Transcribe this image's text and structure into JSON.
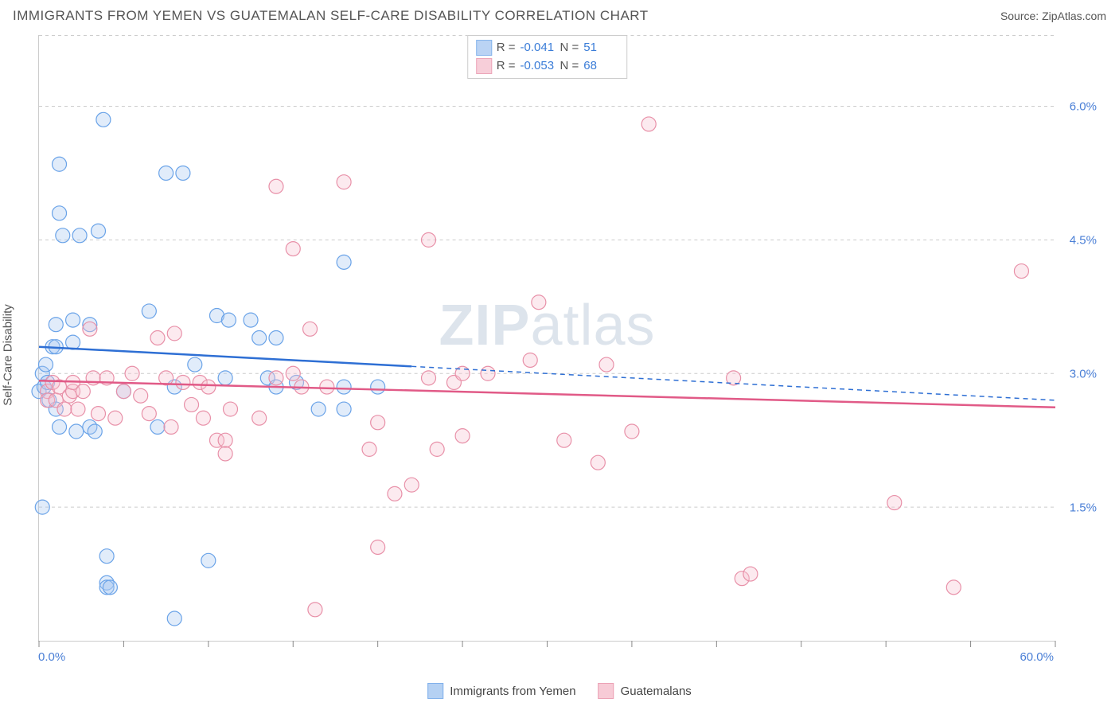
{
  "title": "IMMIGRANTS FROM YEMEN VS GUATEMALAN SELF-CARE DISABILITY CORRELATION CHART",
  "source_label": "Source: ",
  "source_value": "ZipAtlas.com",
  "watermark": {
    "bold": "ZIP",
    "light": "atlas"
  },
  "chart": {
    "type": "scatter",
    "background_color": "#ffffff",
    "grid_color": "#cccccc",
    "axis_color": "#cccccc",
    "tick_color": "#888888",
    "label_color": "#4a7fd6",
    "y_axis_title": "Self-Care Disability",
    "xlim": [
      0,
      60
    ],
    "ylim": [
      0,
      6.8
    ],
    "x_end_labels": [
      {
        "value": 0,
        "text": "0.0%"
      },
      {
        "value": 60,
        "text": "60.0%"
      }
    ],
    "x_tick_positions": [
      0,
      5,
      10,
      15,
      20,
      25,
      30,
      35,
      40,
      45,
      50,
      55,
      60
    ],
    "y_tick_labels": [
      {
        "value": 1.5,
        "text": "1.5%"
      },
      {
        "value": 3.0,
        "text": "3.0%"
      },
      {
        "value": 4.5,
        "text": "4.5%"
      },
      {
        "value": 6.0,
        "text": "6.0%"
      }
    ],
    "marker_radius": 9,
    "marker_fill_opacity": 0.35,
    "marker_stroke_width": 1.2,
    "trend_line_width": 2.5,
    "series": [
      {
        "name": "Immigrants from Yemen",
        "stroke": "#6aa3e8",
        "fill": "#a9c9f2",
        "line_color": "#2e6fd4",
        "R": "-0.041",
        "N": "51",
        "trend": {
          "x1": 0,
          "y1": 3.3,
          "x_solid_end": 22,
          "y_solid_end": 3.08,
          "x2": 60,
          "y2": 2.7
        },
        "points": [
          [
            0,
            2.8
          ],
          [
            0.2,
            3.0
          ],
          [
            0.3,
            2.85
          ],
          [
            0.5,
            2.9
          ],
          [
            0.4,
            3.1
          ],
          [
            0.6,
            2.7
          ],
          [
            0.8,
            3.3
          ],
          [
            0.2,
            1.5
          ],
          [
            1,
            3.3
          ],
          [
            1,
            2.6
          ],
          [
            1,
            3.55
          ],
          [
            1.2,
            2.4
          ],
          [
            1.2,
            4.8
          ],
          [
            1.4,
            4.55
          ],
          [
            1.2,
            5.35
          ],
          [
            2,
            3.6
          ],
          [
            2,
            3.35
          ],
          [
            2.2,
            2.35
          ],
          [
            2.4,
            4.55
          ],
          [
            3,
            3.55
          ],
          [
            3,
            2.4
          ],
          [
            3.3,
            2.35
          ],
          [
            3.5,
            4.6
          ],
          [
            3.8,
            5.85
          ],
          [
            4,
            0.95
          ],
          [
            4,
            0.65
          ],
          [
            4,
            0.6
          ],
          [
            4.2,
            0.6
          ],
          [
            5,
            2.8
          ],
          [
            6.5,
            3.7
          ],
          [
            7,
            2.4
          ],
          [
            7.5,
            5.25
          ],
          [
            8,
            0.25
          ],
          [
            8,
            2.85
          ],
          [
            8.5,
            5.25
          ],
          [
            9.2,
            3.1
          ],
          [
            10,
            0.9
          ],
          [
            10.5,
            3.65
          ],
          [
            11,
            2.95
          ],
          [
            11.2,
            3.6
          ],
          [
            12.5,
            3.6
          ],
          [
            13,
            3.4
          ],
          [
            13.5,
            2.95
          ],
          [
            14,
            3.4
          ],
          [
            14,
            2.85
          ],
          [
            15.2,
            2.9
          ],
          [
            16.5,
            2.6
          ],
          [
            18,
            4.25
          ],
          [
            18,
            2.85
          ],
          [
            18,
            2.6
          ],
          [
            20,
            2.85
          ]
        ]
      },
      {
        "name": "Guatemalans",
        "stroke": "#e890a8",
        "fill": "#f6c2d0",
        "line_color": "#e15a87",
        "R": "-0.053",
        "N": "68",
        "trend": {
          "x1": 0,
          "y1": 2.92,
          "x_solid_end": 60,
          "y_solid_end": 2.62,
          "x2": 60,
          "y2": 2.62
        },
        "points": [
          [
            0.5,
            2.8
          ],
          [
            0.5,
            2.7
          ],
          [
            0.8,
            2.9
          ],
          [
            1,
            2.7
          ],
          [
            1.2,
            2.85
          ],
          [
            1.5,
            2.6
          ],
          [
            1.8,
            2.75
          ],
          [
            2,
            2.8
          ],
          [
            2,
            2.9
          ],
          [
            2.3,
            2.6
          ],
          [
            2.6,
            2.8
          ],
          [
            3,
            3.5
          ],
          [
            3.2,
            2.95
          ],
          [
            3.5,
            2.55
          ],
          [
            4,
            2.95
          ],
          [
            4.5,
            2.5
          ],
          [
            5,
            2.8
          ],
          [
            5.5,
            3.0
          ],
          [
            6,
            2.75
          ],
          [
            6.5,
            2.55
          ],
          [
            7,
            3.4
          ],
          [
            7.5,
            2.95
          ],
          [
            7.8,
            2.4
          ],
          [
            8,
            3.45
          ],
          [
            8.5,
            2.9
          ],
          [
            9,
            2.65
          ],
          [
            9.5,
            2.9
          ],
          [
            9.7,
            2.5
          ],
          [
            10,
            2.85
          ],
          [
            10.5,
            2.25
          ],
          [
            11,
            2.25
          ],
          [
            11,
            2.1
          ],
          [
            11.3,
            2.6
          ],
          [
            13,
            2.5
          ],
          [
            14,
            5.1
          ],
          [
            14,
            2.95
          ],
          [
            15,
            3.0
          ],
          [
            15,
            4.4
          ],
          [
            15.5,
            2.85
          ],
          [
            16,
            3.5
          ],
          [
            16.3,
            0.35
          ],
          [
            17,
            2.85
          ],
          [
            18,
            5.15
          ],
          [
            19.5,
            2.15
          ],
          [
            20,
            2.45
          ],
          [
            20,
            1.05
          ],
          [
            21,
            1.65
          ],
          [
            22,
            1.75
          ],
          [
            23,
            2.95
          ],
          [
            23,
            4.5
          ],
          [
            23.5,
            2.15
          ],
          [
            24.5,
            2.9
          ],
          [
            25,
            3.0
          ],
          [
            25,
            2.3
          ],
          [
            26.5,
            3.0
          ],
          [
            29,
            3.15
          ],
          [
            29.5,
            3.8
          ],
          [
            31,
            2.25
          ],
          [
            33,
            2.0
          ],
          [
            33.5,
            3.1
          ],
          [
            35,
            2.35
          ],
          [
            36,
            5.8
          ],
          [
            41,
            2.95
          ],
          [
            41.5,
            0.7
          ],
          [
            42,
            0.75
          ],
          [
            50.5,
            1.55
          ],
          [
            54,
            0.6
          ],
          [
            58,
            4.15
          ]
        ]
      }
    ]
  },
  "stat_legend": {
    "R_label": "R =",
    "N_label": "N ="
  }
}
